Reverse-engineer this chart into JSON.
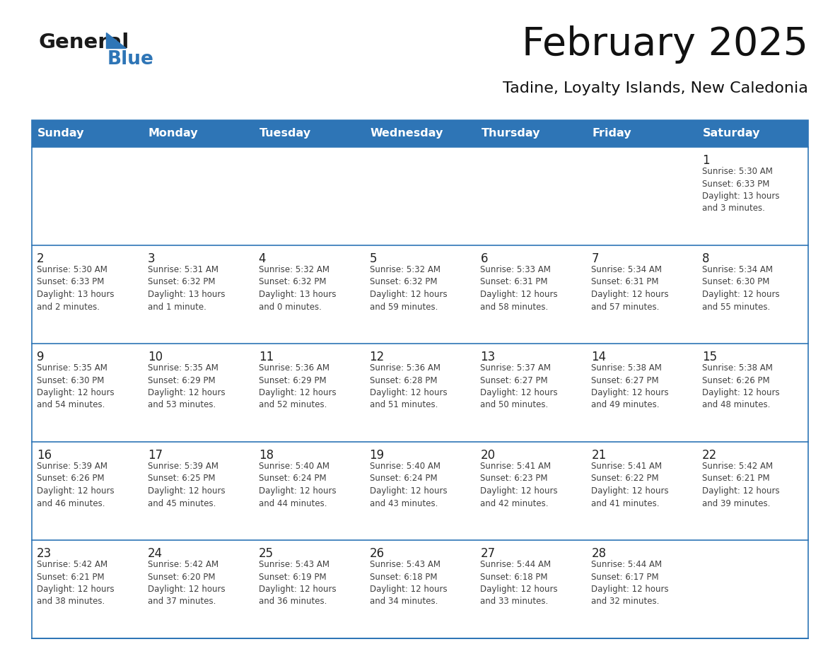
{
  "title": "February 2025",
  "subtitle": "Tadine, Loyalty Islands, New Caledonia",
  "header_bg": "#2E75B6",
  "header_text_color": "#FFFFFF",
  "header_days": [
    "Sunday",
    "Monday",
    "Tuesday",
    "Wednesday",
    "Thursday",
    "Friday",
    "Saturday"
  ],
  "row_bg": "#FFFFFF",
  "row_bg_alt": "#F0F0F0",
  "cell_text_color": "#404040",
  "grid_line_color": "#2E75B6",
  "day_number_color": "#222222",
  "logo_general_color": "#1a1a1a",
  "logo_blue_color": "#2E75B6",
  "weeks": [
    [
      {
        "day": null,
        "info": null
      },
      {
        "day": null,
        "info": null
      },
      {
        "day": null,
        "info": null
      },
      {
        "day": null,
        "info": null
      },
      {
        "day": null,
        "info": null
      },
      {
        "day": null,
        "info": null
      },
      {
        "day": 1,
        "info": "Sunrise: 5:30 AM\nSunset: 6:33 PM\nDaylight: 13 hours\nand 3 minutes."
      }
    ],
    [
      {
        "day": 2,
        "info": "Sunrise: 5:30 AM\nSunset: 6:33 PM\nDaylight: 13 hours\nand 2 minutes."
      },
      {
        "day": 3,
        "info": "Sunrise: 5:31 AM\nSunset: 6:32 PM\nDaylight: 13 hours\nand 1 minute."
      },
      {
        "day": 4,
        "info": "Sunrise: 5:32 AM\nSunset: 6:32 PM\nDaylight: 13 hours\nand 0 minutes."
      },
      {
        "day": 5,
        "info": "Sunrise: 5:32 AM\nSunset: 6:32 PM\nDaylight: 12 hours\nand 59 minutes."
      },
      {
        "day": 6,
        "info": "Sunrise: 5:33 AM\nSunset: 6:31 PM\nDaylight: 12 hours\nand 58 minutes."
      },
      {
        "day": 7,
        "info": "Sunrise: 5:34 AM\nSunset: 6:31 PM\nDaylight: 12 hours\nand 57 minutes."
      },
      {
        "day": 8,
        "info": "Sunrise: 5:34 AM\nSunset: 6:30 PM\nDaylight: 12 hours\nand 55 minutes."
      }
    ],
    [
      {
        "day": 9,
        "info": "Sunrise: 5:35 AM\nSunset: 6:30 PM\nDaylight: 12 hours\nand 54 minutes."
      },
      {
        "day": 10,
        "info": "Sunrise: 5:35 AM\nSunset: 6:29 PM\nDaylight: 12 hours\nand 53 minutes."
      },
      {
        "day": 11,
        "info": "Sunrise: 5:36 AM\nSunset: 6:29 PM\nDaylight: 12 hours\nand 52 minutes."
      },
      {
        "day": 12,
        "info": "Sunrise: 5:36 AM\nSunset: 6:28 PM\nDaylight: 12 hours\nand 51 minutes."
      },
      {
        "day": 13,
        "info": "Sunrise: 5:37 AM\nSunset: 6:27 PM\nDaylight: 12 hours\nand 50 minutes."
      },
      {
        "day": 14,
        "info": "Sunrise: 5:38 AM\nSunset: 6:27 PM\nDaylight: 12 hours\nand 49 minutes."
      },
      {
        "day": 15,
        "info": "Sunrise: 5:38 AM\nSunset: 6:26 PM\nDaylight: 12 hours\nand 48 minutes."
      }
    ],
    [
      {
        "day": 16,
        "info": "Sunrise: 5:39 AM\nSunset: 6:26 PM\nDaylight: 12 hours\nand 46 minutes."
      },
      {
        "day": 17,
        "info": "Sunrise: 5:39 AM\nSunset: 6:25 PM\nDaylight: 12 hours\nand 45 minutes."
      },
      {
        "day": 18,
        "info": "Sunrise: 5:40 AM\nSunset: 6:24 PM\nDaylight: 12 hours\nand 44 minutes."
      },
      {
        "day": 19,
        "info": "Sunrise: 5:40 AM\nSunset: 6:24 PM\nDaylight: 12 hours\nand 43 minutes."
      },
      {
        "day": 20,
        "info": "Sunrise: 5:41 AM\nSunset: 6:23 PM\nDaylight: 12 hours\nand 42 minutes."
      },
      {
        "day": 21,
        "info": "Sunrise: 5:41 AM\nSunset: 6:22 PM\nDaylight: 12 hours\nand 41 minutes."
      },
      {
        "day": 22,
        "info": "Sunrise: 5:42 AM\nSunset: 6:21 PM\nDaylight: 12 hours\nand 39 minutes."
      }
    ],
    [
      {
        "day": 23,
        "info": "Sunrise: 5:42 AM\nSunset: 6:21 PM\nDaylight: 12 hours\nand 38 minutes."
      },
      {
        "day": 24,
        "info": "Sunrise: 5:42 AM\nSunset: 6:20 PM\nDaylight: 12 hours\nand 37 minutes."
      },
      {
        "day": 25,
        "info": "Sunrise: 5:43 AM\nSunset: 6:19 PM\nDaylight: 12 hours\nand 36 minutes."
      },
      {
        "day": 26,
        "info": "Sunrise: 5:43 AM\nSunset: 6:18 PM\nDaylight: 12 hours\nand 34 minutes."
      },
      {
        "day": 27,
        "info": "Sunrise: 5:44 AM\nSunset: 6:18 PM\nDaylight: 12 hours\nand 33 minutes."
      },
      {
        "day": 28,
        "info": "Sunrise: 5:44 AM\nSunset: 6:17 PM\nDaylight: 12 hours\nand 32 minutes."
      },
      {
        "day": null,
        "info": null
      }
    ]
  ]
}
